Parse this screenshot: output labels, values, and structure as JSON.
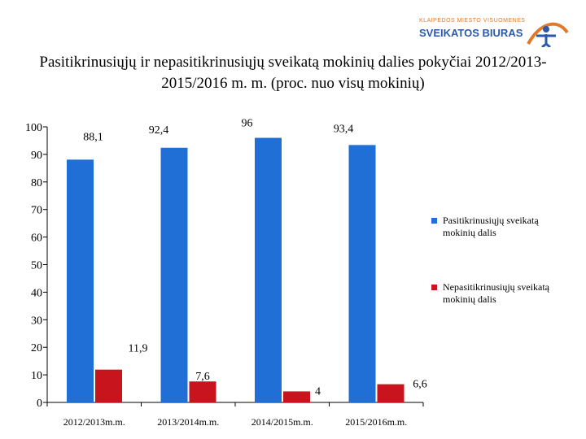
{
  "logo": {
    "top_text": "KLAIPĖDOS MIESTO VISUOMENĖS",
    "main_text": "SVEIKATOS BIURAS",
    "colors": {
      "orange": "#e07a2a",
      "blue": "#2a5aa8"
    }
  },
  "chart_data": {
    "type": "bar",
    "title": "Pasitikrinusiųjų ir nepasitikrinusiųjų sveikatą mokinių dalies pokyčiai 2012/2013- 2015/2016 m. m. (proc. nuo visų mokinių)",
    "categories": [
      "2012/2013m.m.",
      "2013/2014m.m.",
      "2014/2015m.m.",
      "2015/2016m.m."
    ],
    "series": [
      {
        "name": "Pasitikrinusiųjų sveikatą mokinių dalis",
        "values": [
          88.1,
          92.4,
          96,
          93.4
        ],
        "labels": [
          "88,1",
          "92,4",
          "96",
          "93,4"
        ],
        "color": "#1f6fd6"
      },
      {
        "name": "Nepasitikrinusiųjų sveikatą mokinių dalis",
        "values": [
          11.9,
          7.6,
          4,
          6.6
        ],
        "labels": [
          "11,9",
          "7,6",
          "4",
          "6,6"
        ],
        "color": "#c8141c"
      }
    ],
    "yticks": [
      0,
      10,
      20,
      30,
      40,
      50,
      60,
      70,
      80,
      90,
      100
    ],
    "ylim": [
      0,
      100
    ],
    "xlabel": "",
    "ylabel": "",
    "legend": "right"
  }
}
